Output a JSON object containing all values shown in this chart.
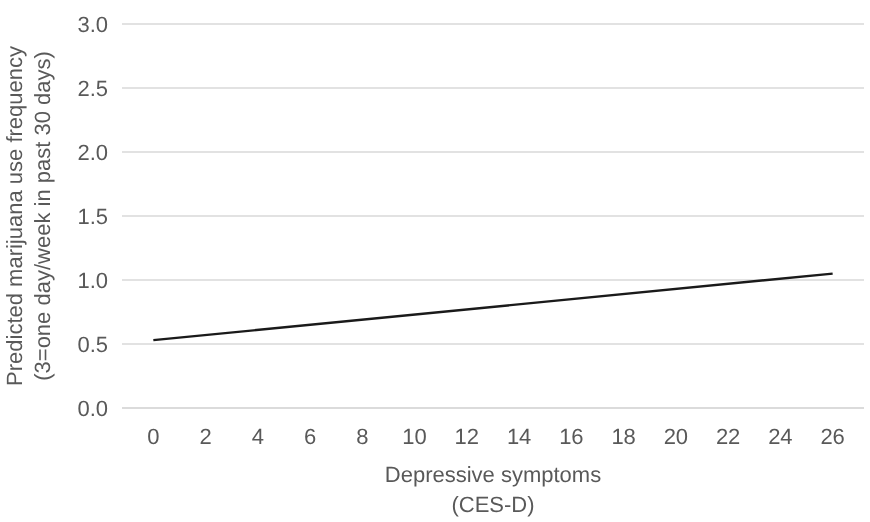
{
  "chart_data": {
    "type": "line",
    "xlabel": "Depressive symptoms\n(CES-D)",
    "ylabel": "Predicted marijuana use frequency\n(3=one day/week in past 30 days)",
    "x": [
      0,
      26
    ],
    "series": [
      {
        "color": "#1a1a1a",
        "values": [
          0.53,
          1.05
        ]
      }
    ],
    "xlim": [
      -1.2,
      27.2
    ],
    "xticks": [
      0,
      2,
      4,
      6,
      8,
      10,
      12,
      14,
      16,
      18,
      20,
      22,
      24,
      26
    ],
    "ylim": [
      0,
      3
    ],
    "yticks": [
      {
        "value": 0,
        "label": "0.0"
      },
      {
        "value": 0.5,
        "label": "0.5"
      },
      {
        "value": 1,
        "label": "1.0"
      },
      {
        "value": 1.5,
        "label": "1.5"
      },
      {
        "value": 2,
        "label": "2.0"
      },
      {
        "value": 2.5,
        "label": "2.5"
      },
      {
        "value": 3,
        "label": "3.0"
      }
    ],
    "grid": "y",
    "marker": "none",
    "line_style": "solid"
  }
}
